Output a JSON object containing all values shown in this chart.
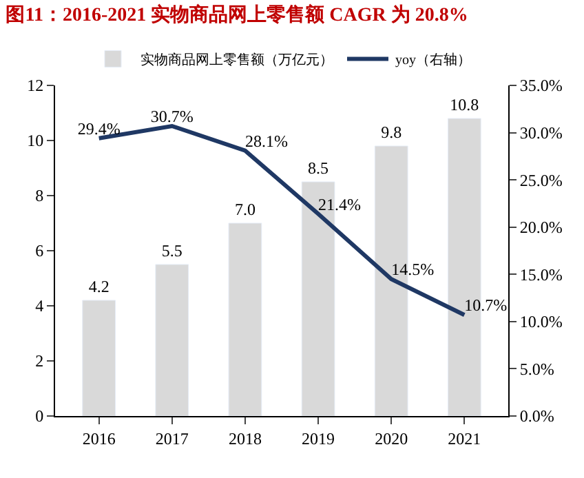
{
  "chart_data": {
    "type": "bar",
    "title": "图11：2016-2021 实物商品网上零售额 CAGR 为 20.8%",
    "categories": [
      "2016",
      "2017",
      "2018",
      "2019",
      "2020",
      "2021"
    ],
    "series": [
      {
        "name": "实物商品网上零售额（万亿元）",
        "color": "#d9d9d9",
        "values": [
          4.2,
          5.5,
          7.0,
          8.5,
          9.8,
          10.8
        ],
        "value_labels": [
          "4.2",
          "5.5",
          "7.0",
          "8.5",
          "9.8",
          "10.8"
        ]
      },
      {
        "name": "yoy（右轴）",
        "type": "line",
        "axis": "y2",
        "color": "#1f3864",
        "values": [
          29.4,
          30.7,
          28.1,
          21.4,
          14.5,
          10.7
        ],
        "value_labels": [
          "29.4%",
          "30.7%",
          "28.1%",
          "21.4%",
          "14.5%",
          "10.7%"
        ]
      }
    ],
    "ylim": [
      0,
      12
    ],
    "yticks": [
      0,
      2,
      4,
      6,
      8,
      10,
      12
    ],
    "y2lim": [
      0,
      35
    ],
    "y2ticks": [
      {
        "value": 0,
        "label": "0.0%"
      },
      {
        "value": 5,
        "label": "5.0%"
      },
      {
        "value": 10,
        "label": "10.0%"
      },
      {
        "value": 15,
        "label": "15.0%"
      },
      {
        "value": 20,
        "label": "20.0%"
      },
      {
        "value": 25,
        "label": "25.0%"
      },
      {
        "value": 30,
        "label": "30.0%"
      },
      {
        "value": 35,
        "label": "35.0%"
      }
    ],
    "legend": "top",
    "marker": "none",
    "line_style": "solid"
  }
}
